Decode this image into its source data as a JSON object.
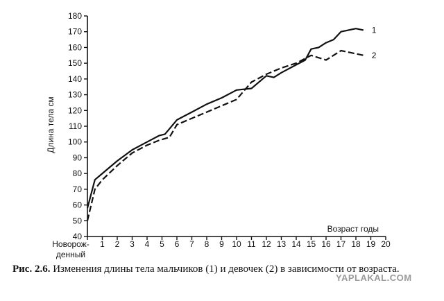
{
  "chart_data": {
    "type": "line",
    "ylabel": "Длина тела  см",
    "xlabel_right": "Возраст  годы",
    "x_first_label_line1": "Новорож-",
    "x_first_label_line2": "денный",
    "ylim": [
      40,
      180
    ],
    "yticks": [
      40,
      50,
      60,
      70,
      80,
      90,
      100,
      110,
      120,
      130,
      140,
      150,
      160,
      170,
      180
    ],
    "xlim": [
      0,
      20
    ],
    "xticks": [
      1,
      2,
      3,
      4,
      5,
      6,
      7,
      8,
      9,
      10,
      11,
      12,
      13,
      14,
      15,
      16,
      17,
      18,
      19,
      20
    ],
    "grid": false,
    "series": [
      {
        "name": "1",
        "style": "solid",
        "x": [
          0,
          0.5,
          1,
          2,
          3,
          4,
          4.8,
          5.2,
          6,
          7,
          8,
          9,
          10,
          11,
          12,
          12.5,
          13,
          14,
          14.6,
          15,
          15.5,
          16,
          16.5,
          17,
          17.5,
          18,
          18.5
        ],
        "y": [
          58,
          76,
          80,
          88,
          95,
          100,
          104,
          105,
          114,
          119,
          124,
          128,
          133,
          134,
          142,
          141,
          144,
          149,
          152,
          159,
          160,
          163,
          165,
          170,
          171,
          172,
          171
        ]
      },
      {
        "name": "2",
        "style": "dashed",
        "x": [
          0,
          0.5,
          1,
          2,
          3,
          4,
          4.8,
          5.5,
          6,
          7,
          8,
          9,
          10,
          11,
          12,
          13,
          14,
          15,
          16,
          17,
          18,
          18.5
        ],
        "y": [
          50,
          70,
          76,
          85,
          93,
          98,
          101,
          103,
          111,
          115,
          119,
          123,
          127,
          138,
          143,
          147,
          150,
          155,
          152,
          158,
          156,
          155
        ]
      }
    ]
  },
  "caption": {
    "prefix": "Рис. 2.6.",
    "text": " Изменения длины тела мальчиков (1) и девочек (2) в зависимости от возраста."
  },
  "watermark": "YAPLAKAL.COM"
}
